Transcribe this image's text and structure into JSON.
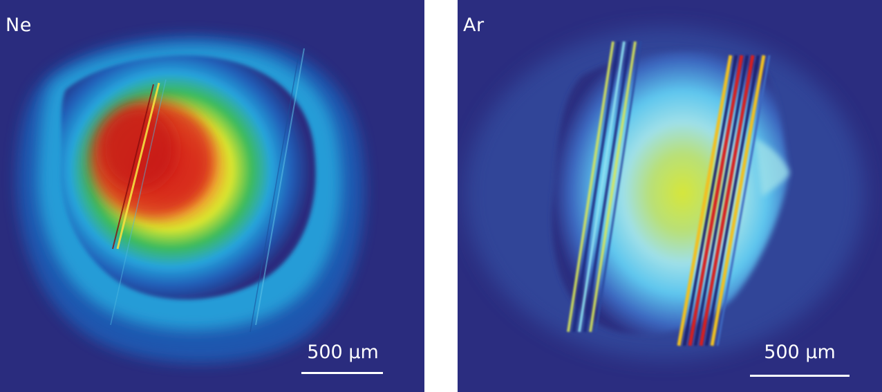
{
  "panels": [
    {
      "label": "Ne",
      "scale_bar": {
        "label": "500 µm"
      },
      "colormap": [
        "#2a2c7e",
        "#1f5fb8",
        "#27a4dc",
        "#5fd0a0",
        "#3dbb5c",
        "#d8e52f",
        "#f0b030",
        "#e04a1e",
        "#c81818"
      ]
    },
    {
      "label": "Ar",
      "scale_bar": {
        "label": "500 µm"
      },
      "colormap": [
        "#2b2d80",
        "#3c68c0",
        "#5ec6ee",
        "#9fe0e8",
        "#d6e63a",
        "#f0c020",
        "#d81e1e",
        "#1a2470"
      ]
    }
  ]
}
